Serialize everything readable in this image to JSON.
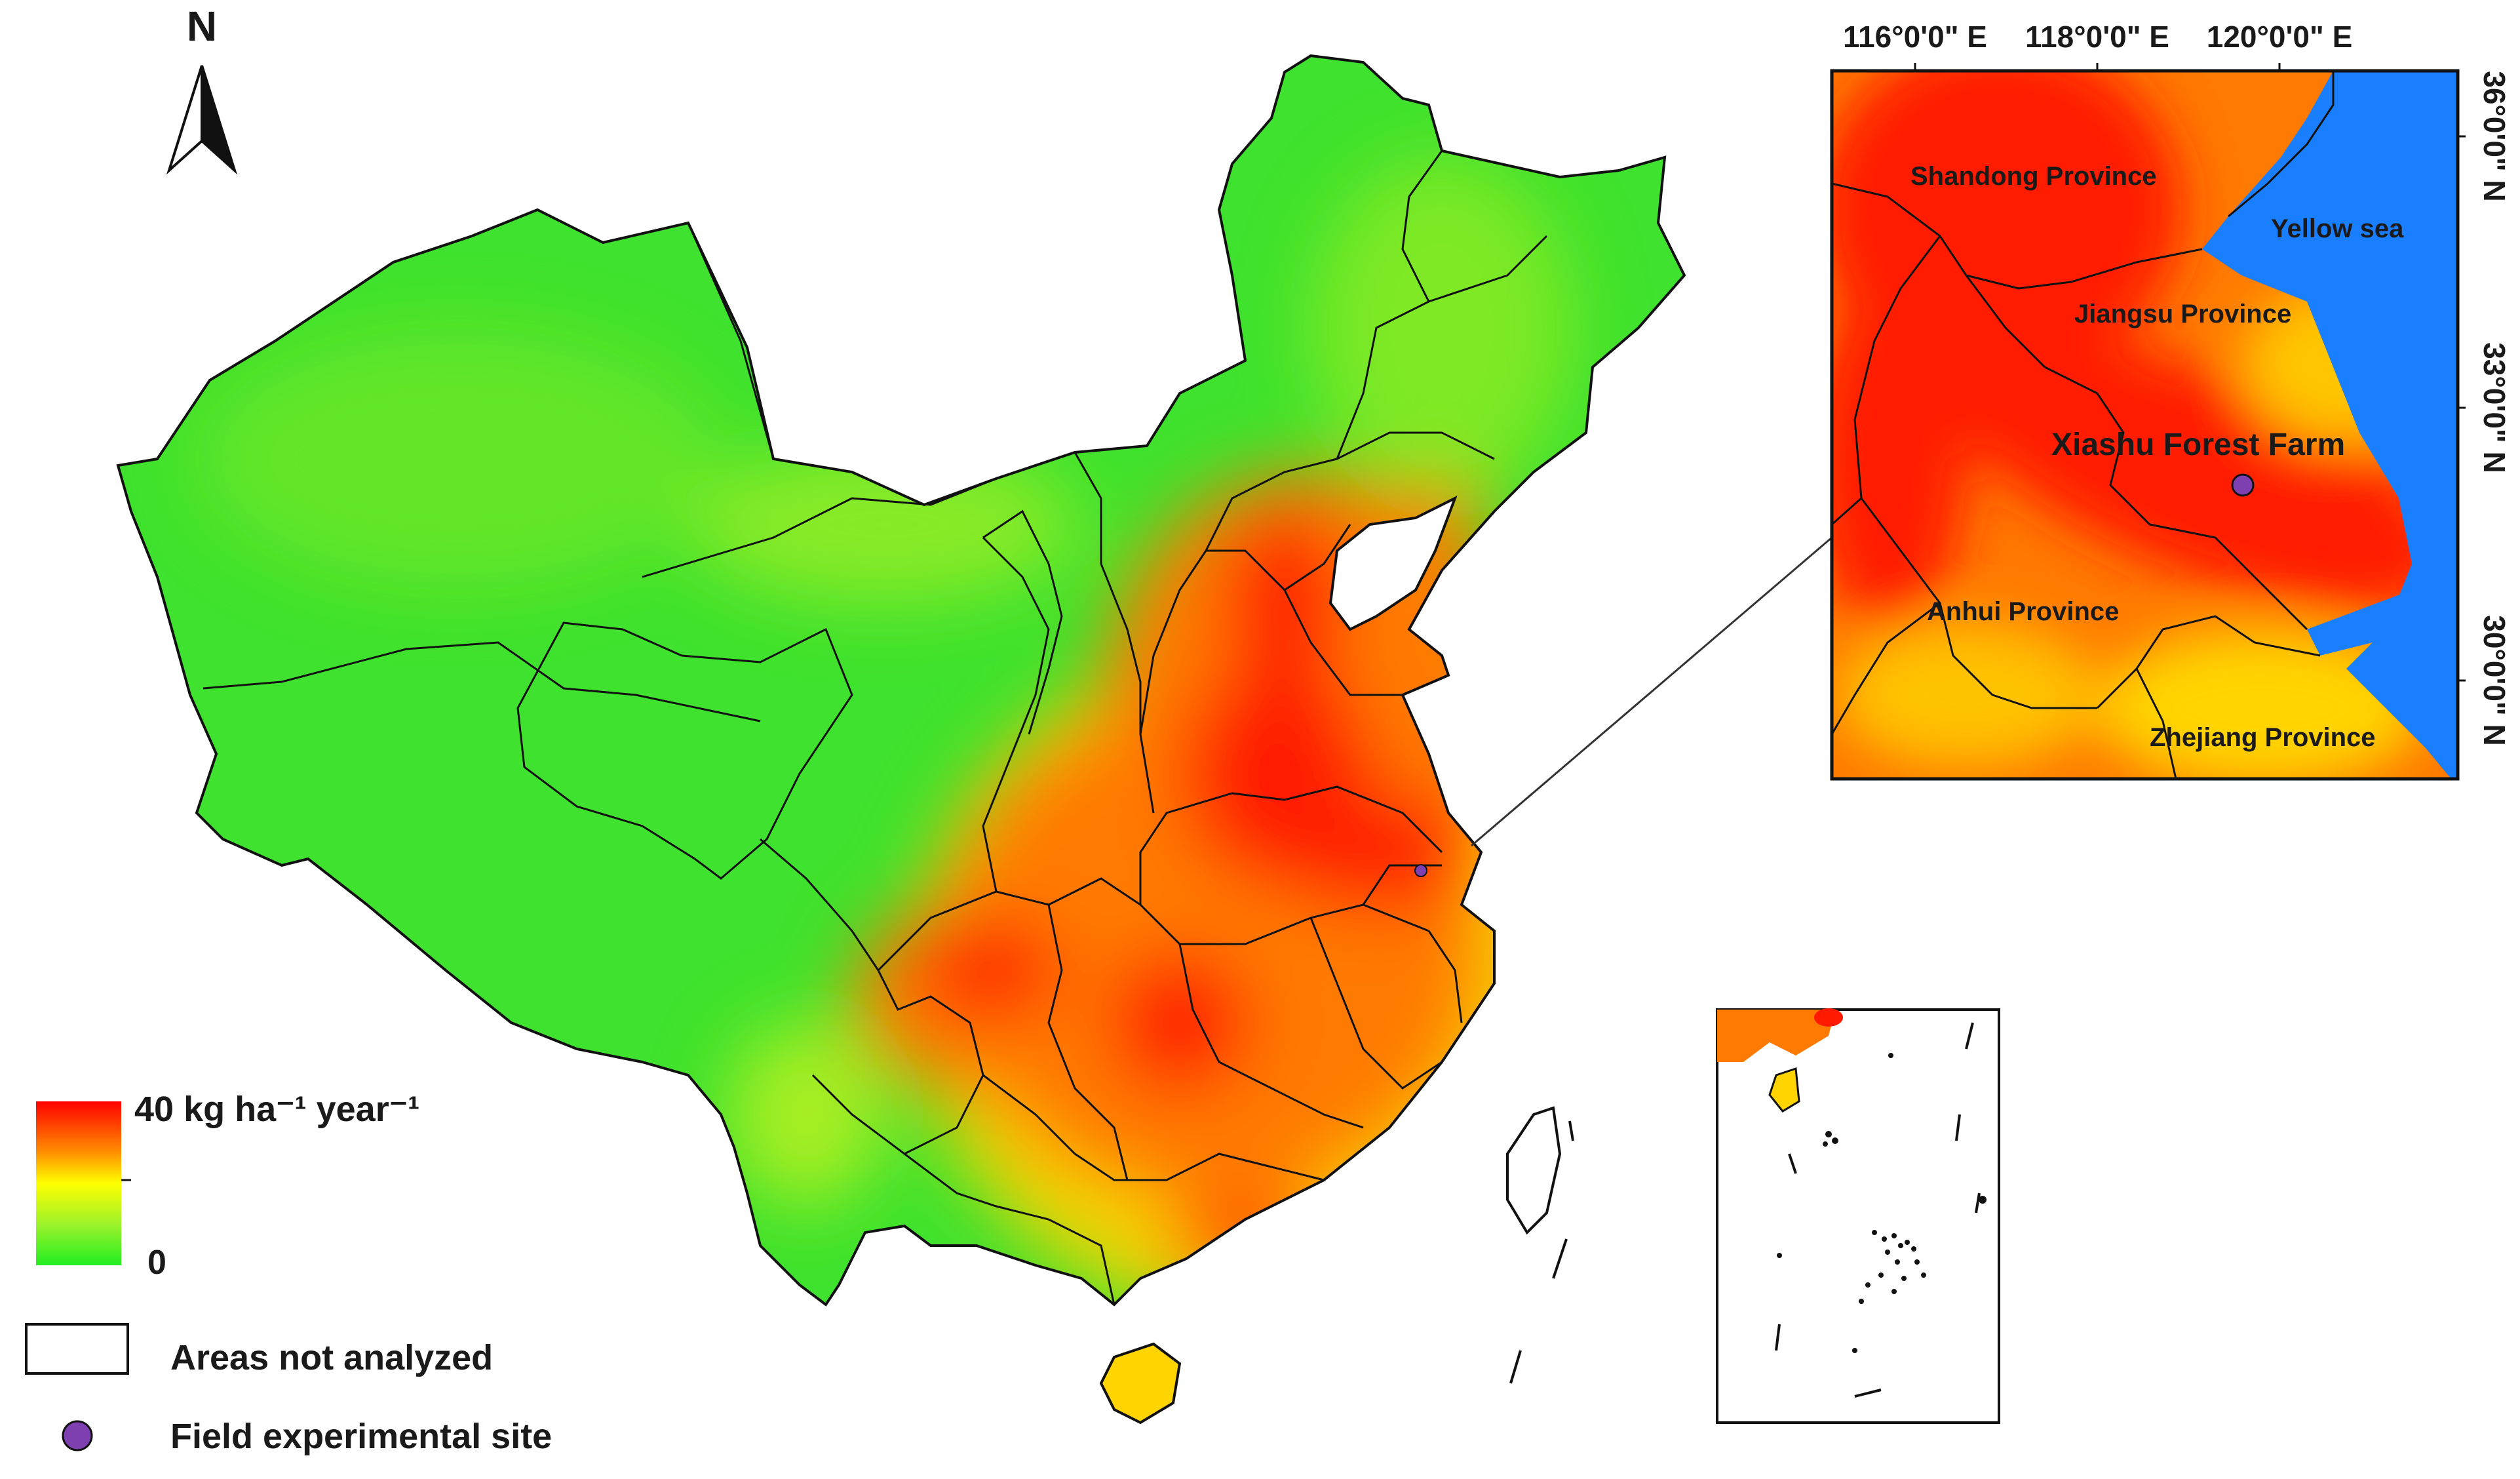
{
  "north_arrow": {
    "label": "N"
  },
  "legend": {
    "max_label": "40 kg ha⁻¹ year⁻¹",
    "min_label": "0",
    "gradient_colors": [
      "#ff0000",
      "#ff8a00",
      "#ffff00",
      "#9cf22a",
      "#22ee22"
    ],
    "not_analyzed_label": "Areas not analyzed",
    "site_label": "Field experimental site",
    "site_color": "#7e3fb0"
  },
  "inset": {
    "lon_ticks": [
      "116°0'0\" E",
      "118°0'0\" E",
      "120°0'0\" E"
    ],
    "lat_ticks": [
      "36°0'0\" N",
      "33°0'0\" N",
      "30°0'0\" N"
    ],
    "labels": {
      "shandong": "Shandong Province",
      "yellow_sea": "Yellow sea",
      "jiangsu": "Jiangsu Province",
      "site": "Xiashu Forest Farm",
      "anhui": "Anhui Province",
      "zhejiang": "Zhejiang Province"
    },
    "sea_color": "#1a7fff"
  },
  "colors": {
    "high": "#ff1a00",
    "orange": "#ff7a00",
    "yellow": "#ffd400",
    "lime": "#a8ee22",
    "green": "#3fe22e"
  }
}
